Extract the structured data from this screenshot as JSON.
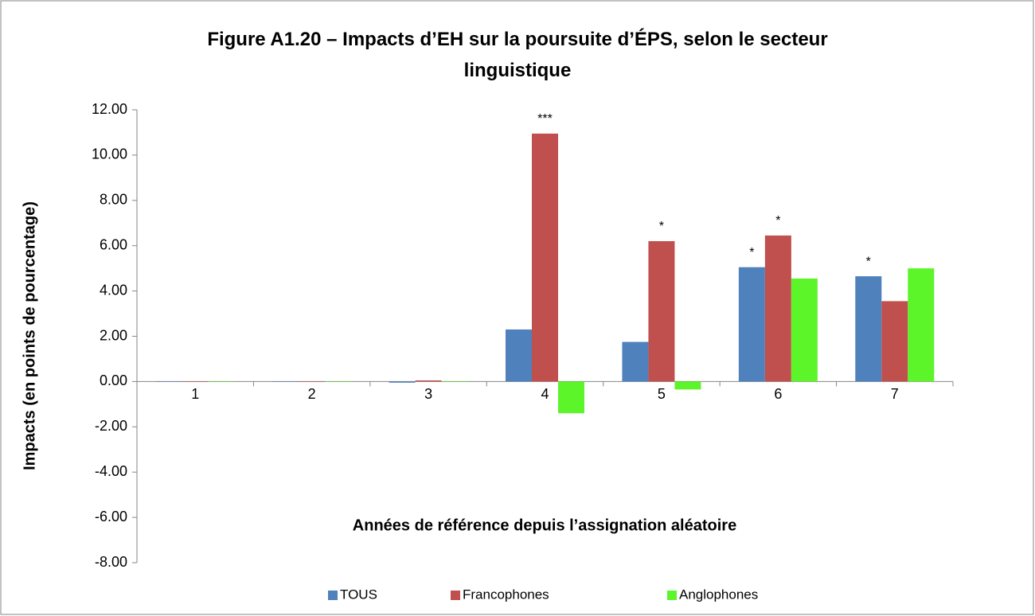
{
  "chart_data": {
    "type": "bar",
    "title": "Figure A1.20 – Impacts d’EH sur la poursuite d’ÉPS, selon le secteur linguistique",
    "xlabel": "Années de référence depuis l’assignation aléatoire",
    "ylabel": "Impacts (en points de pourcentage)",
    "categories": [
      "1",
      "2",
      "3",
      "4",
      "5",
      "6",
      "7"
    ],
    "series": [
      {
        "name": "TOUS",
        "color": "#4f81bd",
        "values": [
          0,
          0,
          -0.05,
          2.3,
          1.75,
          5.05,
          4.65
        ]
      },
      {
        "name": "Francophones",
        "color": "#c0504d",
        "values": [
          0,
          0,
          0.05,
          10.95,
          6.2,
          6.45,
          3.55
        ]
      },
      {
        "name": "Anglophones",
        "color": "#5cf52a",
        "values": [
          0,
          0,
          0,
          -1.4,
          -0.35,
          4.55,
          5.0
        ]
      }
    ],
    "annotations": [
      {
        "text": "***",
        "category": "4",
        "series": "Francophones"
      },
      {
        "text": "*",
        "category": "5",
        "series": "Francophones"
      },
      {
        "text": "*",
        "category": "6",
        "series": "TOUS"
      },
      {
        "text": "*",
        "category": "6",
        "series": "Francophones"
      },
      {
        "text": "*",
        "category": "7",
        "series": "TOUS"
      }
    ],
    "ylim": [
      -8,
      12
    ],
    "yticks": [
      {
        "value": -8,
        "label": "-8.00"
      },
      {
        "value": -6,
        "label": "-6.00"
      },
      {
        "value": -4,
        "label": "-4.00"
      },
      {
        "value": -2,
        "label": "-2.00"
      },
      {
        "value": 0,
        "label": "0.00"
      },
      {
        "value": 2,
        "label": "2.00"
      },
      {
        "value": 4,
        "label": "4.00"
      },
      {
        "value": 6,
        "label": "6.00"
      },
      {
        "value": 8,
        "label": "8.00"
      },
      {
        "value": 10,
        "label": "10.00"
      },
      {
        "value": 12,
        "label": "12.00"
      }
    ],
    "grid": false,
    "legend": "bottom"
  }
}
